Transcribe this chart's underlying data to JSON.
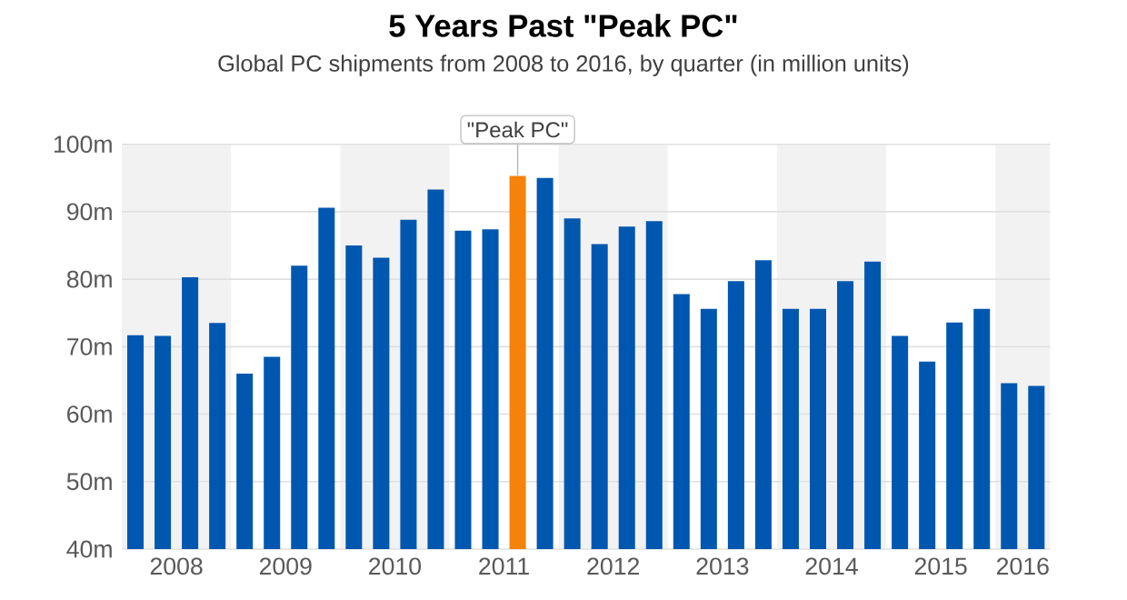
{
  "chart_data": {
    "type": "bar",
    "title": "5 Years Past \"Peak PC\"",
    "subtitle": "Global PC shipments from 2008 to 2016, by quarter (in million units)",
    "x": [
      2008.125,
      2008.375,
      2008.625,
      2008.875,
      2009.125,
      2009.375,
      2009.625,
      2009.875,
      2010.125,
      2010.375,
      2010.625,
      2010.875,
      2011.125,
      2011.375,
      2011.625,
      2011.875,
      2012.125,
      2012.375,
      2012.625,
      2012.875,
      2013.125,
      2013.375,
      2013.625,
      2013.875,
      2014.125,
      2014.375,
      2014.625,
      2014.875,
      2015.125,
      2015.375,
      2015.625,
      2015.875,
      2016.125,
      2016.375
    ],
    "values": [
      71.7,
      71.6,
      80.3,
      73.5,
      66.0,
      68.5,
      82.0,
      90.6,
      85.0,
      83.2,
      88.8,
      93.3,
      87.2,
      87.4,
      95.3,
      95.0,
      89.0,
      85.2,
      87.8,
      88.6,
      77.8,
      75.6,
      79.7,
      82.8,
      75.6,
      75.6,
      79.7,
      82.6,
      71.6,
      67.8,
      73.6,
      75.6,
      64.6,
      64.2
    ],
    "colors": [
      "#0057b0",
      "#0057b0",
      "#0057b0",
      "#0057b0",
      "#0057b0",
      "#0057b0",
      "#0057b0",
      "#0057b0",
      "#0057b0",
      "#0057b0",
      "#0057b0",
      "#0057b0",
      "#0057b0",
      "#0057b0",
      "#f5820a",
      "#0057b0",
      "#0057b0",
      "#0057b0",
      "#0057b0",
      "#0057b0",
      "#0057b0",
      "#0057b0",
      "#0057b0",
      "#0057b0",
      "#0057b0",
      "#0057b0",
      "#0057b0",
      "#0057b0",
      "#0057b0",
      "#0057b0",
      "#0057b0",
      "#0057b0",
      "#0057b0",
      "#0057b0"
    ],
    "xlim": [
      2008,
      2016.5
    ],
    "xticks": [
      {
        "value": 2008.5,
        "label": "2008"
      },
      {
        "value": 2009.5,
        "label": "2009"
      },
      {
        "value": 2010.5,
        "label": "2010"
      },
      {
        "value": 2011.5,
        "label": "2011"
      },
      {
        "value": 2012.5,
        "label": "2012"
      },
      {
        "value": 2013.5,
        "label": "2013"
      },
      {
        "value": 2014.5,
        "label": "2014"
      },
      {
        "value": 2015.5,
        "label": "2015"
      },
      {
        "value": 2016.25,
        "label": "2016"
      }
    ],
    "ylim": [
      40,
      100
    ],
    "yticks": [
      {
        "value": 40,
        "label": "40m"
      },
      {
        "value": 50,
        "label": "50m"
      },
      {
        "value": 60,
        "label": "60m"
      },
      {
        "value": 70,
        "label": "70m"
      },
      {
        "value": 80,
        "label": "80m"
      },
      {
        "value": 90,
        "label": "90m"
      },
      {
        "value": 100,
        "label": "100m"
      }
    ],
    "grid": "y",
    "bands": [
      {
        "axis": "x",
        "from": 2008,
        "to": 2009,
        "color": "#f2f2f2"
      },
      {
        "axis": "x",
        "from": 2010,
        "to": 2011,
        "color": "#f2f2f2"
      },
      {
        "axis": "x",
        "from": 2012,
        "to": 2013,
        "color": "#f2f2f2"
      },
      {
        "axis": "x",
        "from": 2014,
        "to": 2015,
        "color": "#f2f2f2"
      },
      {
        "axis": "x",
        "from": 2016,
        "to": 2016.5,
        "color": "#f2f2f2"
      }
    ],
    "annotations": [
      {
        "text": "\"Peak PC\"",
        "x": 2011.625,
        "y": 95.3
      }
    ]
  }
}
